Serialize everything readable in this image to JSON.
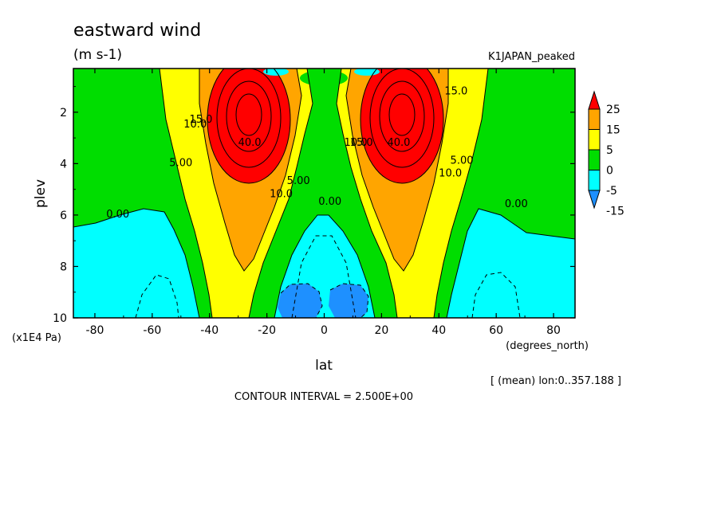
{
  "chart_data": {
    "type": "heatmap",
    "title": "eastward wind",
    "units": "(m s-1)",
    "experiment": "K1JAPAN_peaked",
    "xlabel": "lat",
    "ylabel": "plev",
    "x_units": "(degrees_north)",
    "y_units": "(x1E4 Pa)",
    "xlim": [
      -87.5,
      87.5
    ],
    "ylim": [
      10,
      0.3
    ],
    "x_ticks": [
      "-80",
      "-60",
      "-40",
      "-20",
      "0",
      "20",
      "40",
      "60",
      "80"
    ],
    "x_tick_values": [
      -80,
      -60,
      -40,
      -20,
      0,
      20,
      40,
      60,
      80
    ],
    "y_ticks": [
      "2",
      "4",
      "6",
      "8",
      "10"
    ],
    "y_tick_values": [
      2,
      4,
      6,
      8,
      10
    ],
    "colorbar": {
      "labels": [
        "25",
        "15",
        "5",
        "0",
        "-5",
        "-15"
      ],
      "levels": [
        -15,
        -5,
        0,
        5,
        15,
        25
      ],
      "colors": [
        "#1e90ff",
        "#00ffff",
        "#00dd00",
        "#ffff00",
        "#ffa500",
        "#ff0000"
      ]
    },
    "contour_labels": [
      {
        "text": "0.00",
        "lat": -72,
        "plev": 6.1
      },
      {
        "text": "5.00",
        "lat": -50,
        "plev": 4.1
      },
      {
        "text": "10.0",
        "lat": -45,
        "plev": 2.6
      },
      {
        "text": "15.0",
        "lat": -43,
        "plev": 2.4
      },
      {
        "text": "40.0",
        "lat": -26,
        "plev": 3.3
      },
      {
        "text": "10.0",
        "lat": -15,
        "plev": 5.3
      },
      {
        "text": "5.00",
        "lat": -9,
        "plev": 4.8
      },
      {
        "text": "0.00",
        "lat": 2,
        "plev": 5.6
      },
      {
        "text": "10.0",
        "lat": 11,
        "plev": 3.3
      },
      {
        "text": "15.0",
        "lat": 13,
        "plev": 3.3
      },
      {
        "text": "40.0",
        "lat": 26,
        "plev": 3.3
      },
      {
        "text": "10.0",
        "lat": 44,
        "plev": 4.5
      },
      {
        "text": "5.00",
        "lat": 48,
        "plev": 4.0
      },
      {
        "text": "15.0",
        "lat": 46,
        "plev": 1.3
      },
      {
        "text": "0.00",
        "lat": 67,
        "plev": 5.7
      }
    ],
    "description_fields": {
      "contour_interval": "CONTOUR INTERVAL = 2.500E+00",
      "averaging": "[ (mean) lon:0..357.188 ]"
    }
  }
}
